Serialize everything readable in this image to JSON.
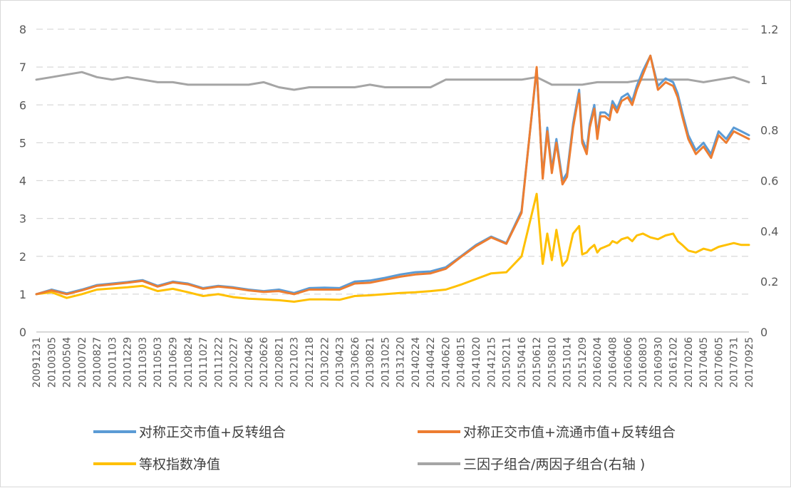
{
  "chart_data": {
    "type": "line",
    "title": "",
    "xlabel": "",
    "ylabel": "",
    "y_left": {
      "lim": [
        0,
        8
      ],
      "ticks": [
        "0",
        "1",
        "2",
        "3",
        "4",
        "5",
        "6",
        "7",
        "8"
      ]
    },
    "y_right": {
      "lim": [
        0,
        1.2
      ],
      "ticks": [
        "0",
        "0.2",
        "0.4",
        "0.6",
        "0.8",
        "1",
        "1.2"
      ]
    },
    "grid": "horizontal-dashed",
    "legend_position": "bottom",
    "x_tick_labels": [
      "20091231",
      "20100305",
      "20100504",
      "20100702",
      "20100827",
      "20101103",
      "20101229",
      "20110303",
      "20110503",
      "20110629",
      "20110824",
      "20111027",
      "20111222",
      "20120227",
      "20120426",
      "20120626",
      "20120821",
      "20121023",
      "20121218",
      "20130222",
      "20130423",
      "20130626",
      "20130821",
      "20131025",
      "20131220",
      "20140224",
      "20140422",
      "20140620",
      "20140815",
      "20141020",
      "20141215",
      "20150211",
      "20150416",
      "20150612",
      "20150810",
      "20151014",
      "20151209",
      "20160204",
      "20160408",
      "20160606",
      "20160803",
      "20160930",
      "20161202",
      "20170206",
      "20170405",
      "20170605",
      "20170731",
      "20170925"
    ],
    "series": [
      {
        "name": "对称正交市值+反转组合",
        "axis": "left",
        "color": "#5b9bd5",
        "x": [
          0,
          1,
          2,
          3,
          4,
          5,
          6,
          7,
          8,
          9,
          10,
          11,
          12,
          13,
          14,
          15,
          16,
          17,
          18,
          19,
          20,
          21,
          22,
          23,
          24,
          25,
          26,
          27,
          28,
          29,
          30,
          31,
          32,
          33,
          33.4,
          33.7,
          34,
          34.3,
          34.7,
          35,
          35.4,
          35.8,
          36,
          36.3,
          36.5,
          36.8,
          37,
          37.2,
          37.5,
          37.8,
          38,
          38.3,
          38.6,
          39,
          39.3,
          39.6,
          40,
          40.5,
          41,
          41.5,
          42,
          42.3,
          42.6,
          43,
          43.5,
          44,
          44.5,
          45,
          45.5,
          46,
          46.5,
          47
        ],
        "y": [
          1.0,
          1.12,
          1.02,
          1.12,
          1.24,
          1.28,
          1.32,
          1.37,
          1.22,
          1.33,
          1.28,
          1.16,
          1.22,
          1.18,
          1.12,
          1.08,
          1.12,
          1.03,
          1.16,
          1.17,
          1.16,
          1.33,
          1.36,
          1.43,
          1.52,
          1.58,
          1.6,
          1.71,
          2.0,
          2.3,
          2.52,
          2.35,
          3.2,
          6.95,
          4.1,
          5.4,
          4.3,
          5.1,
          4.0,
          4.2,
          5.5,
          6.4,
          5.1,
          4.8,
          5.5,
          6.0,
          5.2,
          5.8,
          5.8,
          5.7,
          6.1,
          5.9,
          6.2,
          6.3,
          6.1,
          6.5,
          6.9,
          7.3,
          6.5,
          6.7,
          6.6,
          6.3,
          5.8,
          5.2,
          4.8,
          5.0,
          4.7,
          5.3,
          5.1,
          5.4,
          5.3,
          5.2
        ]
      },
      {
        "name": "对称正交市值+流通市值+反转组合",
        "axis": "left",
        "color": "#ed7d31",
        "x": [
          0,
          1,
          2,
          3,
          4,
          5,
          6,
          7,
          8,
          9,
          10,
          11,
          12,
          13,
          14,
          15,
          16,
          17,
          18,
          19,
          20,
          21,
          22,
          23,
          24,
          25,
          26,
          27,
          28,
          29,
          30,
          31,
          32,
          33,
          33.4,
          33.7,
          34,
          34.3,
          34.7,
          35,
          35.4,
          35.8,
          36,
          36.3,
          36.5,
          36.8,
          37,
          37.2,
          37.5,
          37.8,
          38,
          38.3,
          38.6,
          39,
          39.3,
          39.6,
          40,
          40.5,
          41,
          41.5,
          42,
          42.3,
          42.6,
          43,
          43.5,
          44,
          44.5,
          45,
          45.5,
          46,
          46.5,
          47
        ],
        "y": [
          1.0,
          1.1,
          1.0,
          1.1,
          1.22,
          1.26,
          1.3,
          1.35,
          1.2,
          1.31,
          1.26,
          1.14,
          1.2,
          1.16,
          1.1,
          1.06,
          1.08,
          1.0,
          1.12,
          1.12,
          1.12,
          1.28,
          1.3,
          1.38,
          1.46,
          1.52,
          1.55,
          1.67,
          1.98,
          2.27,
          2.5,
          2.33,
          3.15,
          7.0,
          4.05,
          5.3,
          4.2,
          5.0,
          3.9,
          4.1,
          5.4,
          6.3,
          5.0,
          4.7,
          5.4,
          5.9,
          5.1,
          5.7,
          5.7,
          5.6,
          6.0,
          5.8,
          6.1,
          6.2,
          6.0,
          6.4,
          6.8,
          7.3,
          6.4,
          6.6,
          6.5,
          6.2,
          5.7,
          5.1,
          4.7,
          4.9,
          4.6,
          5.2,
          5.0,
          5.3,
          5.2,
          5.1
        ]
      },
      {
        "name": "等权指数净值",
        "axis": "left",
        "color": "#ffc000",
        "x": [
          0,
          1,
          2,
          3,
          4,
          5,
          6,
          7,
          8,
          9,
          10,
          11,
          12,
          13,
          14,
          15,
          16,
          17,
          18,
          19,
          20,
          21,
          22,
          23,
          24,
          25,
          26,
          27,
          28,
          29,
          30,
          31,
          32,
          33,
          33.4,
          33.7,
          34,
          34.3,
          34.7,
          35,
          35.4,
          35.8,
          36,
          36.3,
          36.5,
          36.8,
          37,
          37.2,
          37.5,
          37.8,
          38,
          38.3,
          38.6,
          39,
          39.3,
          39.6,
          40,
          40.5,
          41,
          41.5,
          42,
          42.3,
          42.6,
          43,
          43.5,
          44,
          44.5,
          45,
          45.5,
          46,
          46.5,
          47
        ],
        "y": [
          1.0,
          1.05,
          0.9,
          1.0,
          1.12,
          1.15,
          1.18,
          1.22,
          1.08,
          1.14,
          1.05,
          0.95,
          1.0,
          0.92,
          0.88,
          0.86,
          0.84,
          0.8,
          0.86,
          0.86,
          0.85,
          0.95,
          0.97,
          1.0,
          1.03,
          1.05,
          1.08,
          1.12,
          1.25,
          1.4,
          1.55,
          1.58,
          2.0,
          3.65,
          1.8,
          2.6,
          1.9,
          2.7,
          1.75,
          1.9,
          2.6,
          2.8,
          2.05,
          2.1,
          2.2,
          2.3,
          2.1,
          2.2,
          2.25,
          2.3,
          2.4,
          2.35,
          2.45,
          2.5,
          2.4,
          2.55,
          2.6,
          2.5,
          2.45,
          2.55,
          2.6,
          2.4,
          2.3,
          2.15,
          2.1,
          2.2,
          2.15,
          2.25,
          2.3,
          2.35,
          2.3,
          2.3
        ]
      },
      {
        "name": "三因子组合/两因子组合(右轴 )",
        "axis": "right",
        "color": "#a5a5a5",
        "x": [
          0,
          1,
          2,
          3,
          4,
          5,
          6,
          7,
          8,
          9,
          10,
          11,
          12,
          13,
          14,
          15,
          16,
          17,
          18,
          19,
          20,
          21,
          22,
          23,
          24,
          25,
          26,
          27,
          28,
          29,
          30,
          31,
          32,
          33,
          34,
          35,
          36,
          37,
          38,
          39,
          40,
          41,
          42,
          43,
          44,
          45,
          46,
          47
        ],
        "y": [
          1.0,
          1.01,
          1.02,
          1.03,
          1.01,
          1.0,
          1.01,
          1.0,
          0.99,
          0.99,
          0.98,
          0.98,
          0.98,
          0.98,
          0.98,
          0.99,
          0.97,
          0.96,
          0.97,
          0.97,
          0.97,
          0.97,
          0.98,
          0.97,
          0.97,
          0.97,
          0.97,
          1.0,
          1.0,
          1.0,
          1.0,
          1.0,
          1.0,
          1.01,
          0.98,
          0.98,
          0.98,
          0.99,
          0.99,
          0.99,
          1.0,
          1.0,
          1.0,
          1.0,
          0.99,
          1.0,
          1.01,
          0.99
        ]
      }
    ]
  }
}
